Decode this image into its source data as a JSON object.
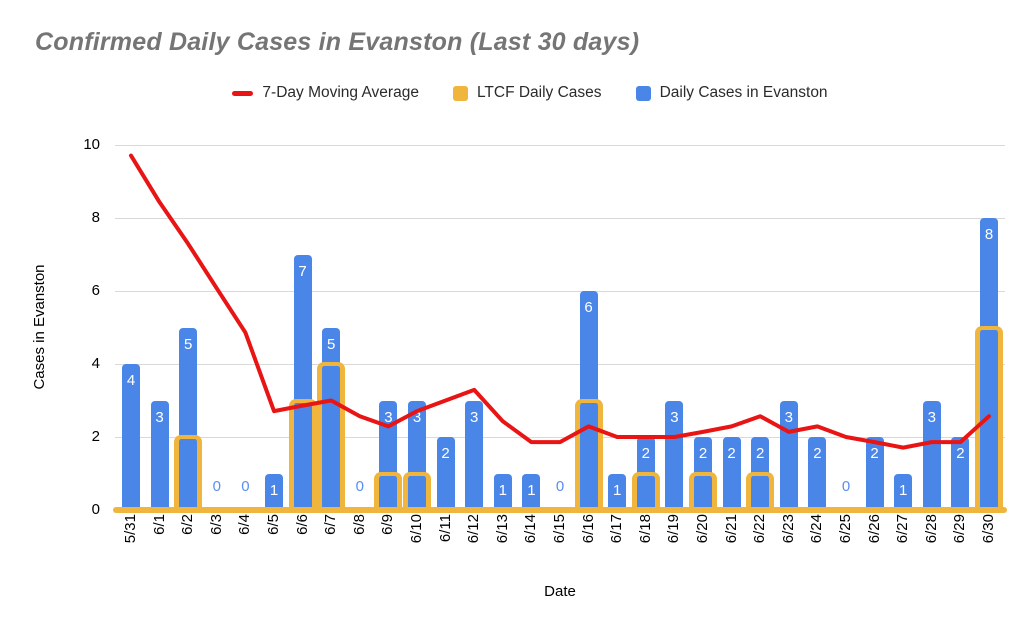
{
  "title": "Confirmed Daily Cases in Evanston (Last 30 days)",
  "colors": {
    "moving_average": "#e91414",
    "ltcf": "#f0b53c",
    "daily": "#4a86e8",
    "bar_label": "#ffffff",
    "zero_label": "#5a8df2",
    "gridline": "#d9d9d9",
    "title": "#757575"
  },
  "legend": [
    {
      "label": "7-Day Moving Average",
      "swatch": "line",
      "color": "#e91414"
    },
    {
      "label": "LTCF Daily Cases",
      "swatch": "square",
      "color": "#f0b53c"
    },
    {
      "label": "Daily Cases in Evanston",
      "swatch": "square",
      "color": "#4a86e8"
    }
  ],
  "chart_data": {
    "type": "bar",
    "title": "Confirmed Daily Cases in Evanston (Last 30 days)",
    "xlabel": "Date",
    "ylabel": "Cases in Evanston",
    "ylim": [
      0,
      10
    ],
    "yticks": [
      0,
      2,
      4,
      6,
      8,
      10
    ],
    "grid": "horizontal",
    "legend_position": "top",
    "bar_value_labels": true,
    "categories": [
      "5/31",
      "6/1",
      "6/2",
      "6/3",
      "6/4",
      "6/5",
      "6/6",
      "6/7",
      "6/8",
      "6/9",
      "6/10",
      "6/11",
      "6/12",
      "6/13",
      "6/14",
      "6/15",
      "6/16",
      "6/17",
      "6/18",
      "6/19",
      "6/20",
      "6/21",
      "6/22",
      "6/23",
      "6/24",
      "6/25",
      "6/26",
      "6/27",
      "6/28",
      "6/29",
      "6/30"
    ],
    "series": [
      {
        "id": "daily",
        "name": "Daily Cases in Evanston",
        "type": "bar",
        "color": "#4a86e8",
        "values": [
          4,
          3,
          5,
          0,
          0,
          1,
          7,
          5,
          0,
          3,
          3,
          2,
          3,
          1,
          1,
          0,
          6,
          1,
          2,
          3,
          2,
          2,
          2,
          3,
          2,
          0,
          2,
          1,
          3,
          2,
          8
        ]
      },
      {
        "id": "ltcf",
        "name": "LTCF Daily Cases",
        "type": "bar-outline",
        "color": "#f0b53c",
        "values": [
          0,
          0,
          2,
          0,
          0,
          0,
          3,
          4,
          0,
          1,
          1,
          0,
          0,
          0,
          0,
          0,
          3,
          0,
          1,
          0,
          1,
          0,
          1,
          0,
          0,
          0,
          0,
          0,
          0,
          0,
          5
        ]
      },
      {
        "id": "ma",
        "name": "7-Day Moving Average",
        "type": "line",
        "color": "#e91414",
        "values": [
          9.71,
          8.43,
          7.29,
          6.07,
          4.86,
          2.71,
          2.86,
          3.0,
          2.57,
          2.29,
          2.71,
          3.0,
          3.29,
          2.43,
          1.86,
          1.86,
          2.29,
          2.0,
          2.0,
          2.0,
          2.14,
          2.29,
          2.57,
          2.14,
          2.29,
          2.0,
          1.86,
          1.71,
          1.86,
          1.86,
          2.57
        ]
      }
    ]
  }
}
